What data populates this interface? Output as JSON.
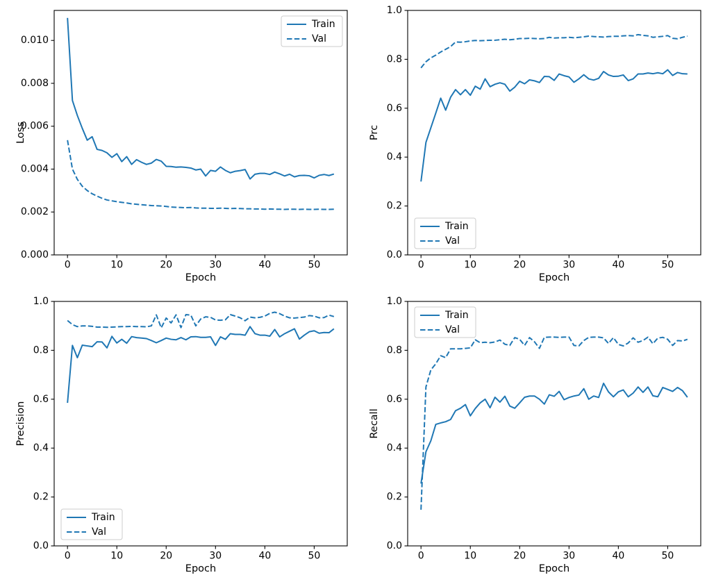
{
  "figure": {
    "background": "#ffffff",
    "accent_color": "#1f77b4",
    "axis_color": "#000000",
    "legend_border_color": "#cccccc",
    "legend_background": "#ffffff"
  },
  "chart_data": [
    {
      "type": "line",
      "name": "loss",
      "title": "",
      "xlabel": "Epoch",
      "ylabel": "Loss",
      "xlim": [
        -2.7,
        56.7
      ],
      "ylim": [
        0,
        0.0114
      ],
      "grid": false,
      "legend_position": "upper-right",
      "xticks": [
        {
          "v": 0,
          "label": "0"
        },
        {
          "v": 10,
          "label": "10"
        },
        {
          "v": 20,
          "label": "20"
        },
        {
          "v": 30,
          "label": "30"
        },
        {
          "v": 40,
          "label": "40"
        },
        {
          "v": 50,
          "label": "50"
        }
      ],
      "yticks": [
        {
          "v": 0,
          "label": "0.000"
        },
        {
          "v": 0.002,
          "label": "0.002"
        },
        {
          "v": 0.004,
          "label": "0.004"
        },
        {
          "v": 0.006,
          "label": "0.006"
        },
        {
          "v": 0.008,
          "label": "0.008"
        },
        {
          "v": 0.01,
          "label": "0.010"
        }
      ],
      "series": [
        {
          "name": "Train",
          "style": "solid",
          "color": "#1f77b4",
          "x_start": 0,
          "values": [
            0.01105,
            0.0072,
            0.0065,
            0.0059,
            0.00535,
            0.00551,
            0.00492,
            0.00487,
            0.00476,
            0.00455,
            0.00472,
            0.00435,
            0.00458,
            0.00422,
            0.00444,
            0.00432,
            0.00422,
            0.00428,
            0.00445,
            0.00437,
            0.00413,
            0.00412,
            0.00409,
            0.0041,
            0.00408,
            0.00405,
            0.00396,
            0.004,
            0.00368,
            0.00394,
            0.0039,
            0.0041,
            0.00394,
            0.00383,
            0.0039,
            0.00393,
            0.00398,
            0.00354,
            0.00376,
            0.0038,
            0.0038,
            0.00375,
            0.00386,
            0.00378,
            0.00368,
            0.00376,
            0.00364,
            0.0037,
            0.00371,
            0.00369,
            0.00359,
            0.00371,
            0.00375,
            0.0037,
            0.00377
          ]
        },
        {
          "name": "Val",
          "style": "dashed",
          "color": "#1f77b4",
          "x_start": 0,
          "values": [
            0.00535,
            0.004,
            0.00352,
            0.0032,
            0.003,
            0.00285,
            0.00274,
            0.00264,
            0.00256,
            0.00252,
            0.00248,
            0.00245,
            0.00242,
            0.00238,
            0.00236,
            0.00234,
            0.00232,
            0.0023,
            0.00229,
            0.00228,
            0.00226,
            0.00223,
            0.00222,
            0.00221,
            0.0022,
            0.00221,
            0.00219,
            0.00218,
            0.00218,
            0.00217,
            0.00217,
            0.00218,
            0.00217,
            0.00216,
            0.00217,
            0.00216,
            0.00215,
            0.00215,
            0.00214,
            0.00214,
            0.00213,
            0.00214,
            0.00213,
            0.00213,
            0.00212,
            0.00213,
            0.00213,
            0.00212,
            0.00213,
            0.00212,
            0.00212,
            0.00213,
            0.00212,
            0.00212,
            0.00213
          ]
        }
      ]
    },
    {
      "type": "line",
      "name": "prc",
      "title": "",
      "xlabel": "Epoch",
      "ylabel": "Prc",
      "xlim": [
        -2.7,
        56.7
      ],
      "ylim": [
        0,
        1.0
      ],
      "grid": false,
      "legend_position": "lower-left",
      "xticks": [
        {
          "v": 0,
          "label": "0"
        },
        {
          "v": 10,
          "label": "10"
        },
        {
          "v": 20,
          "label": "20"
        },
        {
          "v": 30,
          "label": "30"
        },
        {
          "v": 40,
          "label": "40"
        },
        {
          "v": 50,
          "label": "50"
        }
      ],
      "yticks": [
        {
          "v": 0,
          "label": "0.0"
        },
        {
          "v": 0.2,
          "label": "0.2"
        },
        {
          "v": 0.4,
          "label": "0.4"
        },
        {
          "v": 0.6,
          "label": "0.6"
        },
        {
          "v": 0.8,
          "label": "0.8"
        },
        {
          "v": 1.0,
          "label": "1.0"
        }
      ],
      "series": [
        {
          "name": "Train",
          "style": "solid",
          "color": "#1f77b4",
          "x_start": 0,
          "values": [
            0.3,
            0.46,
            0.52,
            0.58,
            0.641,
            0.592,
            0.645,
            0.676,
            0.655,
            0.676,
            0.653,
            0.69,
            0.678,
            0.72,
            0.688,
            0.698,
            0.704,
            0.698,
            0.67,
            0.686,
            0.71,
            0.7,
            0.716,
            0.712,
            0.705,
            0.73,
            0.729,
            0.714,
            0.74,
            0.733,
            0.728,
            0.706,
            0.72,
            0.737,
            0.72,
            0.715,
            0.722,
            0.75,
            0.736,
            0.73,
            0.731,
            0.736,
            0.713,
            0.72,
            0.74,
            0.74,
            0.744,
            0.741,
            0.745,
            0.741,
            0.757,
            0.734,
            0.746,
            0.741,
            0.74
          ]
        },
        {
          "name": "Val",
          "style": "dashed",
          "color": "#1f77b4",
          "x_start": 0,
          "values": [
            0.765,
            0.79,
            0.806,
            0.817,
            0.83,
            0.841,
            0.852,
            0.871,
            0.87,
            0.872,
            0.875,
            0.877,
            0.876,
            0.877,
            0.878,
            0.878,
            0.88,
            0.882,
            0.88,
            0.882,
            0.885,
            0.885,
            0.886,
            0.885,
            0.884,
            0.885,
            0.89,
            0.887,
            0.888,
            0.888,
            0.89,
            0.888,
            0.89,
            0.892,
            0.895,
            0.893,
            0.892,
            0.891,
            0.893,
            0.894,
            0.894,
            0.896,
            0.897,
            0.896,
            0.901,
            0.898,
            0.896,
            0.89,
            0.892,
            0.894,
            0.897,
            0.886,
            0.884,
            0.89,
            0.895
          ]
        }
      ]
    },
    {
      "type": "line",
      "name": "precision",
      "title": "",
      "xlabel": "Epoch",
      "ylabel": "Precision",
      "xlim": [
        -2.7,
        56.7
      ],
      "ylim": [
        0,
        1.0
      ],
      "grid": false,
      "legend_position": "lower-left",
      "xticks": [
        {
          "v": 0,
          "label": "0"
        },
        {
          "v": 10,
          "label": "10"
        },
        {
          "v": 20,
          "label": "20"
        },
        {
          "v": 30,
          "label": "30"
        },
        {
          "v": 40,
          "label": "40"
        },
        {
          "v": 50,
          "label": "50"
        }
      ],
      "yticks": [
        {
          "v": 0,
          "label": "0.0"
        },
        {
          "v": 0.2,
          "label": "0.2"
        },
        {
          "v": 0.4,
          "label": "0.4"
        },
        {
          "v": 0.6,
          "label": "0.6"
        },
        {
          "v": 0.8,
          "label": "0.8"
        },
        {
          "v": 1.0,
          "label": "1.0"
        }
      ],
      "series": [
        {
          "name": "Train",
          "style": "solid",
          "color": "#1f77b4",
          "x_start": 0,
          "values": [
            0.585,
            0.82,
            0.77,
            0.821,
            0.818,
            0.815,
            0.835,
            0.834,
            0.81,
            0.857,
            0.83,
            0.845,
            0.829,
            0.856,
            0.852,
            0.85,
            0.848,
            0.84,
            0.831,
            0.84,
            0.85,
            0.845,
            0.843,
            0.852,
            0.843,
            0.855,
            0.856,
            0.853,
            0.853,
            0.855,
            0.82,
            0.855,
            0.845,
            0.868,
            0.865,
            0.865,
            0.862,
            0.897,
            0.868,
            0.862,
            0.862,
            0.858,
            0.885,
            0.855,
            0.868,
            0.878,
            0.888,
            0.846,
            0.862,
            0.876,
            0.88,
            0.87,
            0.873,
            0.872,
            0.888
          ]
        },
        {
          "name": "Val",
          "style": "dashed",
          "color": "#1f77b4",
          "x_start": 0,
          "values": [
            0.922,
            0.905,
            0.897,
            0.9,
            0.9,
            0.898,
            0.895,
            0.895,
            0.894,
            0.895,
            0.896,
            0.897,
            0.897,
            0.898,
            0.897,
            0.897,
            0.896,
            0.9,
            0.945,
            0.892,
            0.932,
            0.912,
            0.945,
            0.893,
            0.946,
            0.944,
            0.9,
            0.928,
            0.937,
            0.935,
            0.924,
            0.923,
            0.925,
            0.946,
            0.94,
            0.933,
            0.921,
            0.936,
            0.933,
            0.935,
            0.94,
            0.951,
            0.956,
            0.95,
            0.94,
            0.933,
            0.932,
            0.934,
            0.936,
            0.942,
            0.94,
            0.933,
            0.934,
            0.944,
            0.938
          ]
        }
      ]
    },
    {
      "type": "line",
      "name": "recall",
      "title": "",
      "xlabel": "Epoch",
      "ylabel": "Recall",
      "xlim": [
        -2.7,
        56.7
      ],
      "ylim": [
        0,
        1.0
      ],
      "grid": false,
      "legend_position": "upper-left",
      "xticks": [
        {
          "v": 0,
          "label": "0"
        },
        {
          "v": 10,
          "label": "10"
        },
        {
          "v": 20,
          "label": "20"
        },
        {
          "v": 30,
          "label": "30"
        },
        {
          "v": 40,
          "label": "40"
        },
        {
          "v": 50,
          "label": "50"
        }
      ],
      "yticks": [
        {
          "v": 0,
          "label": "0.0"
        },
        {
          "v": 0.2,
          "label": "0.2"
        },
        {
          "v": 0.4,
          "label": "0.4"
        },
        {
          "v": 0.6,
          "label": "0.6"
        },
        {
          "v": 0.8,
          "label": "0.8"
        },
        {
          "v": 1.0,
          "label": "1.0"
        }
      ],
      "series": [
        {
          "name": "Train",
          "style": "solid",
          "color": "#1f77b4",
          "x_start": 0,
          "values": [
            0.255,
            0.385,
            0.43,
            0.497,
            0.503,
            0.508,
            0.517,
            0.553,
            0.563,
            0.578,
            0.532,
            0.562,
            0.585,
            0.6,
            0.565,
            0.608,
            0.588,
            0.612,
            0.572,
            0.563,
            0.585,
            0.608,
            0.613,
            0.613,
            0.6,
            0.58,
            0.618,
            0.612,
            0.632,
            0.598,
            0.607,
            0.613,
            0.617,
            0.643,
            0.6,
            0.613,
            0.607,
            0.665,
            0.63,
            0.61,
            0.63,
            0.638,
            0.61,
            0.625,
            0.65,
            0.628,
            0.65,
            0.614,
            0.61,
            0.648,
            0.64,
            0.632,
            0.648,
            0.635,
            0.608
          ]
        },
        {
          "name": "Val",
          "style": "dashed",
          "color": "#1f77b4",
          "x_start": 0,
          "values": [
            0.148,
            0.65,
            0.72,
            0.745,
            0.778,
            0.77,
            0.806,
            0.806,
            0.806,
            0.808,
            0.81,
            0.843,
            0.831,
            0.833,
            0.831,
            0.834,
            0.842,
            0.825,
            0.82,
            0.852,
            0.845,
            0.82,
            0.852,
            0.835,
            0.808,
            0.853,
            0.854,
            0.854,
            0.853,
            0.854,
            0.854,
            0.82,
            0.818,
            0.84,
            0.853,
            0.854,
            0.854,
            0.851,
            0.828,
            0.852,
            0.824,
            0.818,
            0.83,
            0.851,
            0.833,
            0.84,
            0.854,
            0.827,
            0.85,
            0.853,
            0.845,
            0.82,
            0.84,
            0.838,
            0.845
          ]
        }
      ]
    }
  ]
}
